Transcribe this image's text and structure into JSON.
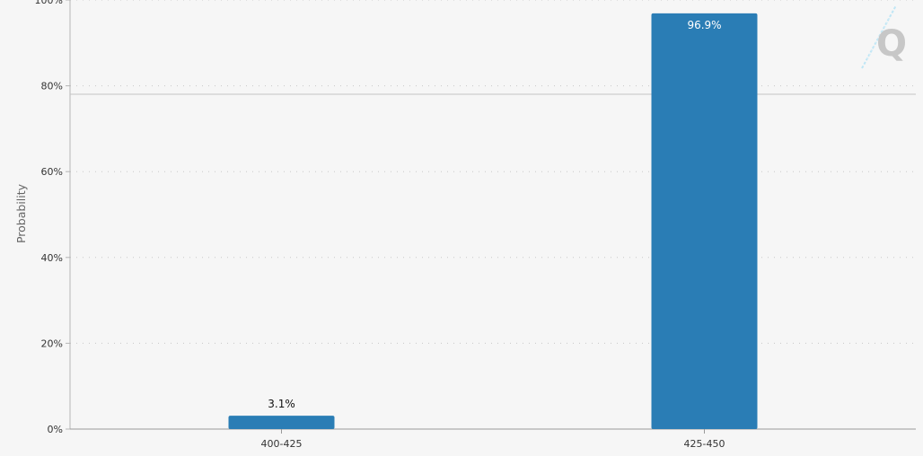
{
  "chart_data": {
    "type": "bar",
    "categories": [
      "400-425",
      "425-450"
    ],
    "values": [
      3.1,
      96.9
    ],
    "data_labels": [
      "3.1%",
      "96.9%"
    ],
    "ylabel": "Probability",
    "xlabel": "",
    "ylim": [
      0,
      100
    ],
    "y_ticks": [
      0,
      20,
      40,
      60,
      80,
      100
    ],
    "y_tick_labels": [
      "0%",
      "20%",
      "40%",
      "60%",
      "80%",
      "100%"
    ],
    "grid": true,
    "legend": "none",
    "bar_color": "#2a7db5",
    "logo": "Q"
  }
}
